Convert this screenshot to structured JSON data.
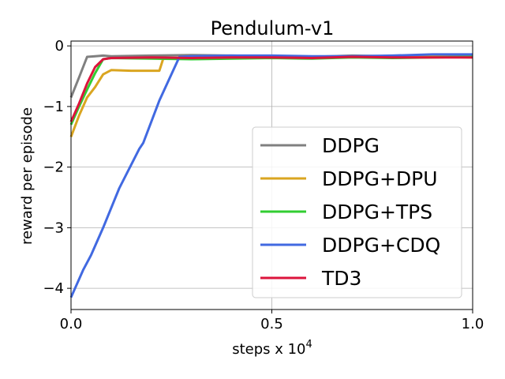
{
  "chart_data": {
    "type": "line",
    "title": "Pendulum-v1",
    "xlabel": "steps x 10",
    "xlabel_exponent": "4",
    "ylabel": "reward per episode",
    "xlim": [
      0,
      1.0
    ],
    "ylim": [
      -4.35,
      0.08
    ],
    "x_ticks": [
      0.0,
      0.5,
      1.0
    ],
    "x_tick_labels": [
      "0.0",
      "0.5",
      "1.0"
    ],
    "y_ticks": [
      0,
      -1,
      -2,
      -3,
      -4
    ],
    "y_tick_labels": [
      "0",
      "−1",
      "−2",
      "−3",
      "−4"
    ],
    "grid": true,
    "legend_position": "right",
    "series": [
      {
        "name": "DDPG",
        "color": "#808080",
        "x": [
          0,
          0.02,
          0.04,
          0.06,
          0.08,
          0.1,
          0.2,
          0.3,
          0.4,
          0.5,
          0.6,
          0.7,
          0.8,
          0.9,
          1.0
        ],
        "y": [
          -0.85,
          -0.52,
          -0.18,
          -0.17,
          -0.16,
          -0.17,
          -0.16,
          -0.15,
          -0.16,
          -0.17,
          -0.18,
          -0.16,
          -0.17,
          -0.16,
          -0.15
        ]
      },
      {
        "name": "DDPG+DPU",
        "color": "#DAA520",
        "x": [
          0,
          0.02,
          0.04,
          0.06,
          0.08,
          0.1,
          0.15,
          0.2,
          0.22,
          0.23,
          0.3,
          0.4,
          0.5,
          0.6,
          0.7,
          0.8,
          0.9,
          1.0
        ],
        "y": [
          -1.5,
          -1.15,
          -0.85,
          -0.68,
          -0.47,
          -0.4,
          -0.41,
          -0.41,
          -0.41,
          -0.2,
          -0.2,
          -0.19,
          -0.18,
          -0.19,
          -0.18,
          -0.19,
          -0.18,
          -0.19
        ]
      },
      {
        "name": "DDPG+TPS",
        "color": "#32CD32",
        "x": [
          0,
          0.02,
          0.04,
          0.06,
          0.08,
          0.1,
          0.2,
          0.3,
          0.4,
          0.5,
          0.6,
          0.7,
          0.8,
          0.9,
          1.0
        ],
        "y": [
          -1.3,
          -1.0,
          -0.72,
          -0.45,
          -0.22,
          -0.2,
          -0.21,
          -0.22,
          -0.21,
          -0.2,
          -0.21,
          -0.19,
          -0.2,
          -0.19,
          -0.18
        ]
      },
      {
        "name": "DDPG+CDQ",
        "color": "#4169E1",
        "x": [
          0,
          0.03,
          0.05,
          0.08,
          0.12,
          0.17,
          0.18,
          0.22,
          0.27,
          0.3,
          0.4,
          0.5,
          0.6,
          0.7,
          0.8,
          0.9,
          1.0
        ],
        "y": [
          -4.15,
          -3.7,
          -3.45,
          -3.0,
          -2.35,
          -1.7,
          -1.6,
          -0.9,
          -0.18,
          -0.17,
          -0.16,
          -0.16,
          -0.17,
          -0.17,
          -0.16,
          -0.14,
          -0.14
        ]
      },
      {
        "name": "TD3",
        "color": "#DC143C",
        "x": [
          0,
          0.02,
          0.04,
          0.06,
          0.08,
          0.1,
          0.2,
          0.3,
          0.4,
          0.5,
          0.6,
          0.7,
          0.8,
          0.9,
          1.0
        ],
        "y": [
          -1.25,
          -0.95,
          -0.62,
          -0.35,
          -0.22,
          -0.2,
          -0.19,
          -0.2,
          -0.19,
          -0.19,
          -0.2,
          -0.18,
          -0.19,
          -0.19,
          -0.19
        ]
      }
    ]
  }
}
